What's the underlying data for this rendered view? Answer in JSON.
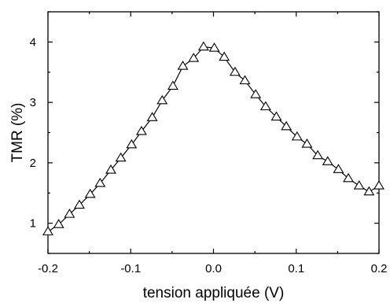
{
  "chart_data": {
    "type": "line",
    "title": "",
    "xlabel": "tension appliquée (V)",
    "ylabel": "TMR (%)",
    "xlim": [
      -0.2,
      0.2
    ],
    "ylim": [
      0.5,
      4.5
    ],
    "xticks": [
      -0.2,
      -0.1,
      0.0,
      0.1,
      0.2
    ],
    "xtick_labels": [
      "-0.2",
      "-0.1",
      "0.0",
      "0.1",
      "0.2"
    ],
    "yticks": [
      1,
      2,
      3,
      4
    ],
    "ytick_labels": [
      "1",
      "2",
      "3",
      "4"
    ],
    "grid": false,
    "marker": "open-triangle",
    "series": [
      {
        "x": [
          -0.2,
          -0.187,
          -0.174,
          -0.162,
          -0.149,
          -0.137,
          -0.124,
          -0.112,
          -0.099,
          -0.087,
          -0.074,
          -0.062,
          -0.049,
          -0.037,
          -0.024,
          -0.012,
          0.001,
          0.013,
          0.026,
          0.038,
          0.051,
          0.063,
          0.076,
          0.088,
          0.101,
          0.113,
          0.126,
          0.138,
          0.151,
          0.163,
          0.176,
          0.188,
          0.2
        ],
        "y": [
          0.86,
          0.98,
          1.15,
          1.3,
          1.48,
          1.66,
          1.88,
          2.08,
          2.3,
          2.52,
          2.75,
          3.03,
          3.27,
          3.6,
          3.73,
          3.92,
          3.9,
          3.75,
          3.5,
          3.36,
          3.13,
          2.93,
          2.76,
          2.6,
          2.43,
          2.31,
          2.12,
          2.02,
          1.89,
          1.74,
          1.62,
          1.52,
          1.62
        ]
      }
    ]
  }
}
